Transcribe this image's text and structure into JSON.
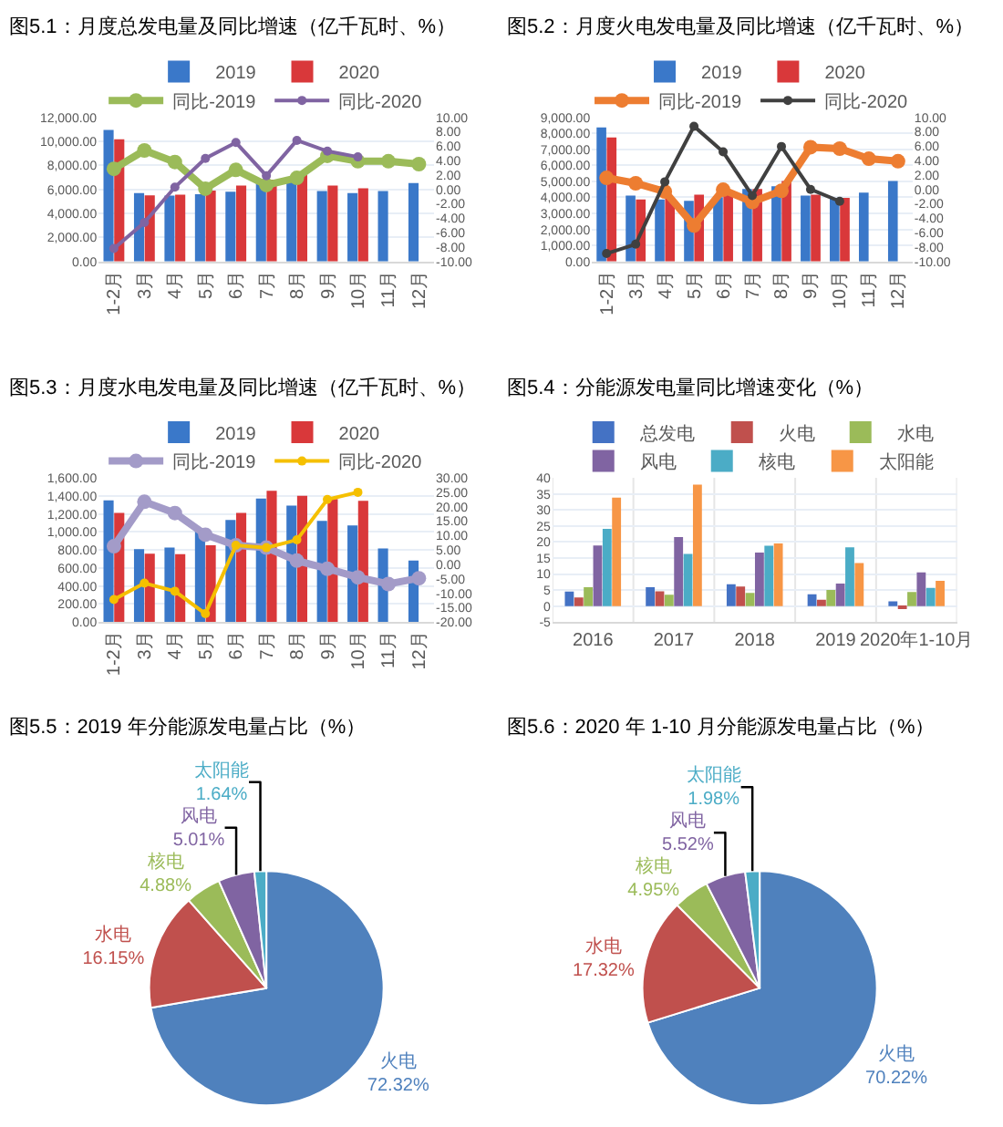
{
  "chart_data": [
    {
      "type": "bar",
      "title": "图5.1：月度总发电量及同比增速（亿千瓦时、%）",
      "categories": [
        "1-2月",
        "3月",
        "4月",
        "5月",
        "6月",
        "7月",
        "8月",
        "9月",
        "10月",
        "11月",
        "12月"
      ],
      "grid": "y",
      "legend": "top",
      "marker": "circle",
      "line_style": "solid",
      "ylim": [
        0,
        12000
      ],
      "yticks": [
        {
          "value": 0,
          "label": "0.00"
        },
        {
          "value": 2000,
          "label": "2,000.00"
        },
        {
          "value": 4000,
          "label": "4,000.00"
        },
        {
          "value": 6000,
          "label": "6,000.00"
        },
        {
          "value": 8000,
          "label": "8,000.00"
        },
        {
          "value": 10000,
          "label": "10,000.00"
        },
        {
          "value": 12000,
          "label": "12,000.00"
        }
      ],
      "y2lim": [
        -10,
        10
      ],
      "y2ticks": [
        {
          "value": -10,
          "label": "-10.00"
        },
        {
          "value": -8,
          "label": "-8.00"
        },
        {
          "value": -6,
          "label": "-6.00"
        },
        {
          "value": -4,
          "label": "-4.00"
        },
        {
          "value": -2,
          "label": "-2.00"
        },
        {
          "value": 0,
          "label": "0.00"
        },
        {
          "value": 2,
          "label": "2.00"
        },
        {
          "value": 4,
          "label": "4.00"
        },
        {
          "value": 6,
          "label": "6.00"
        },
        {
          "value": 8,
          "label": "8.00"
        },
        {
          "value": 10,
          "label": "10.00"
        }
      ],
      "series": [
        {
          "name": "2019",
          "type": "bar",
          "color": "#3a78c9",
          "values": [
            10950,
            5690,
            5480,
            5590,
            5800,
            6520,
            6700,
            5870,
            5690,
            5870,
            6520
          ]
        },
        {
          "name": "2020",
          "type": "bar",
          "color": "#d9383a",
          "values": [
            10160,
            5510,
            5550,
            5910,
            6310,
            6810,
            7350,
            6310,
            6090,
            null,
            null
          ]
        },
        {
          "name": "同比-2019",
          "type": "line",
          "axis": "y2",
          "color": "#9bbb59",
          "values": [
            2.85,
            5.4,
            3.8,
            0.1,
            2.7,
            0.6,
            1.6,
            4.65,
            3.9,
            3.9,
            3.5
          ]
        },
        {
          "name": "同比-2020",
          "type": "line",
          "axis": "y2",
          "color": "#8064a2",
          "values": [
            -8.2,
            -4.6,
            0.3,
            4.3,
            6.5,
            1.9,
            6.8,
            5.3,
            4.5,
            null,
            null
          ]
        }
      ]
    },
    {
      "type": "bar",
      "title": "图5.2：月度火电发电量及同比增速（亿千瓦时、%）",
      "categories": [
        "1-2月",
        "3月",
        "4月",
        "5月",
        "6月",
        "7月",
        "8月",
        "9月",
        "10月",
        "11月",
        "12月"
      ],
      "grid": "y",
      "legend": "top",
      "marker": "circle",
      "line_style": "solid",
      "ylim": [
        0,
        9000
      ],
      "yticks": [
        {
          "value": 0,
          "label": "0.00"
        },
        {
          "value": 1000,
          "label": "1,000.00"
        },
        {
          "value": 2000,
          "label": "2,000.00"
        },
        {
          "value": 3000,
          "label": "3,000.00"
        },
        {
          "value": 4000,
          "label": "4,000.00"
        },
        {
          "value": 5000,
          "label": "5,000.00"
        },
        {
          "value": 6000,
          "label": "6,000.00"
        },
        {
          "value": 7000,
          "label": "7,000.00"
        },
        {
          "value": 8000,
          "label": "8,000.00"
        },
        {
          "value": 9000,
          "label": "9,000.00"
        }
      ],
      "y2lim": [
        -10,
        10
      ],
      "y2ticks": [
        {
          "value": -10,
          "label": "-10.00"
        },
        {
          "value": -8,
          "label": "-8.00"
        },
        {
          "value": -6,
          "label": "-6.00"
        },
        {
          "value": -4,
          "label": "-4.00"
        },
        {
          "value": -2,
          "label": "-2.00"
        },
        {
          "value": 0,
          "label": "0.00"
        },
        {
          "value": 2,
          "label": "2.00"
        },
        {
          "value": 4,
          "label": "4.00"
        },
        {
          "value": 6,
          "label": "6.00"
        },
        {
          "value": 8,
          "label": "8.00"
        },
        {
          "value": 10,
          "label": "10.00"
        }
      ],
      "series": [
        {
          "name": "2019",
          "type": "bar",
          "color": "#3a78c9",
          "values": [
            8370,
            4120,
            3870,
            3790,
            4020,
            4520,
            4700,
            4120,
            3940,
            4300,
            5030
          ]
        },
        {
          "name": "2020",
          "type": "bar",
          "color": "#d9383a",
          "values": [
            7740,
            3870,
            3940,
            4170,
            4320,
            4520,
            5030,
            4170,
            3970,
            null,
            null
          ]
        },
        {
          "name": "同比-2019",
          "type": "line",
          "axis": "y2",
          "color": "#ed7d31",
          "values": [
            1.6,
            0.85,
            -0.3,
            -5.0,
            -0.05,
            -1.75,
            -0.2,
            5.85,
            5.65,
            4.25,
            3.9
          ]
        },
        {
          "name": "同比-2020",
          "type": "line",
          "axis": "y2",
          "color": "#404040",
          "values": [
            -8.9,
            -7.6,
            1.05,
            8.75,
            5.2,
            -0.85,
            5.95,
            0,
            -1.65,
            null,
            null
          ]
        }
      ]
    },
    {
      "type": "bar",
      "title": "图5.3：月度水电发电量及同比增速（亿千瓦时、%）",
      "categories": [
        "1-2月",
        "3月",
        "4月",
        "5月",
        "6月",
        "7月",
        "8月",
        "9月",
        "10月",
        "11月",
        "12月"
      ],
      "grid": "y",
      "legend": "top",
      "marker": "circle",
      "line_style": "solid",
      "ylim": [
        0,
        1600
      ],
      "yticks": [
        {
          "value": 0,
          "label": "0.00"
        },
        {
          "value": 200,
          "label": "200.00"
        },
        {
          "value": 400,
          "label": "400.00"
        },
        {
          "value": 600,
          "label": "600.00"
        },
        {
          "value": 800,
          "label": "800.00"
        },
        {
          "value": 1000,
          "label": "1,000.00"
        },
        {
          "value": 1200,
          "label": "1,200.00"
        },
        {
          "value": 1400,
          "label": "1,400.00"
        },
        {
          "value": 1600,
          "label": "1,600.00"
        }
      ],
      "y2lim": [
        -20,
        30
      ],
      "y2ticks": [
        {
          "value": -20,
          "label": "-20.00"
        },
        {
          "value": -15,
          "label": "-15.00"
        },
        {
          "value": -10,
          "label": "-10.00"
        },
        {
          "value": -5,
          "label": "-5.00"
        },
        {
          "value": 0,
          "label": "0.00"
        },
        {
          "value": 5,
          "label": "5.00"
        },
        {
          "value": 10,
          "label": "10.00"
        },
        {
          "value": 15,
          "label": "15.00"
        },
        {
          "value": 20,
          "label": "20.00"
        },
        {
          "value": 25,
          "label": "25.00"
        },
        {
          "value": 30,
          "label": "30.00"
        }
      ],
      "series": [
        {
          "name": "2019",
          "type": "bar",
          "color": "#3a78c9",
          "values": [
            1350,
            808,
            828,
            1022,
            1132,
            1371,
            1291,
            1122,
            1072,
            818,
            683
          ]
        },
        {
          "name": "2020",
          "type": "bar",
          "color": "#d9383a",
          "values": [
            1210,
            758,
            753,
            852,
            1211,
            1456,
            1401,
            1366,
            1346,
            null,
            null
          ]
        },
        {
          "name": "同比-2019",
          "type": "line",
          "axis": "y2",
          "color": "#a39bc8",
          "values": [
            6.3,
            21.7,
            17.8,
            10.3,
            6.6,
            5.8,
            1.3,
            -1.5,
            -4.5,
            -6.8,
            -4.8
          ]
        },
        {
          "name": "同比-2020",
          "type": "line",
          "axis": "y2",
          "color": "#f5c000",
          "values": [
            -12.2,
            -6.5,
            -9.3,
            -17.1,
            6.6,
            5.8,
            8.5,
            22.5,
            25.0,
            null,
            null
          ]
        }
      ]
    },
    {
      "type": "bar",
      "title": "图5.4：分能源发电量同比增速变化（%）",
      "categories": [
        "2016",
        "2017",
        "2018",
        "2019",
        "2020年1-10月"
      ],
      "grid": true,
      "legend": "top",
      "ylim": [
        -5,
        40
      ],
      "yticks": [
        -5,
        0,
        5,
        10,
        15,
        20,
        25,
        30,
        35,
        40
      ],
      "series": [
        {
          "name": "总发电",
          "color": "#4472c4",
          "values": [
            4.5,
            5.9,
            6.8,
            3.7,
            1.5
          ]
        },
        {
          "name": "火电",
          "color": "#c0504d",
          "values": [
            2.7,
            4.6,
            6.1,
            2.0,
            -0.5
          ]
        },
        {
          "name": "水电",
          "color": "#9bbb59",
          "values": [
            5.9,
            3.5,
            4.1,
            5.0,
            4.4
          ]
        },
        {
          "name": "风电",
          "color": "#8064a2",
          "values": [
            18.9,
            21.5,
            16.7,
            7.0,
            10.5
          ]
        },
        {
          "name": "核电",
          "color": "#4bacc6",
          "values": [
            24.1,
            16.3,
            18.8,
            18.3,
            5.7
          ]
        },
        {
          "name": "太阳能",
          "color": "#f79646",
          "values": [
            33.8,
            37.9,
            19.5,
            13.4,
            7.9
          ]
        }
      ]
    },
    {
      "type": "pie",
      "title": "图5.5：2019 年分能源发电量占比（%）",
      "categories": [
        "火电",
        "水电",
        "核电",
        "风电",
        "太阳能"
      ],
      "values": [
        72.32,
        16.15,
        4.88,
        5.01,
        1.64
      ],
      "value_labels": [
        "72.32%",
        "16.15%",
        "4.88%",
        "5.01%",
        "1.64%"
      ],
      "colors": [
        "#4f81bd",
        "#c0504d",
        "#9bbb59",
        "#8064a2",
        "#4bacc6"
      ]
    },
    {
      "type": "pie",
      "title": "图5.6：2020 年 1-10 月分能源发电量占比（%）",
      "categories": [
        "火电",
        "水电",
        "核电",
        "风电",
        "太阳能"
      ],
      "values": [
        70.22,
        17.32,
        4.95,
        5.52,
        1.98
      ],
      "value_labels": [
        "70.22%",
        "17.32%",
        "4.95%",
        "5.52%",
        "1.98%"
      ],
      "colors": [
        "#4f81bd",
        "#c0504d",
        "#9bbb59",
        "#8064a2",
        "#4bacc6"
      ]
    }
  ]
}
